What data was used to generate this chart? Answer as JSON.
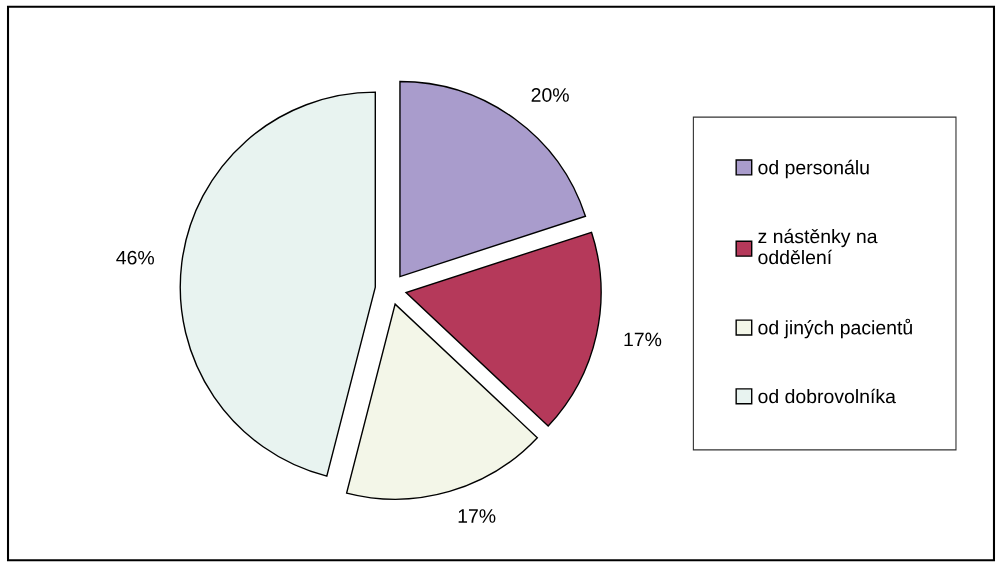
{
  "chart_data": {
    "type": "pie",
    "categories": [
      "od personálu",
      "z nástěnky na\noddělení",
      "od jiných pacientů",
      "od dobrovolníka"
    ],
    "values": [
      20,
      17,
      17,
      46
    ],
    "value_labels": [
      "20%",
      "17%",
      "17%",
      "46%"
    ],
    "colors": [
      "#a99ccc",
      "#b5395a",
      "#f3f6e8",
      "#e8f3f0"
    ],
    "legend": "right"
  }
}
